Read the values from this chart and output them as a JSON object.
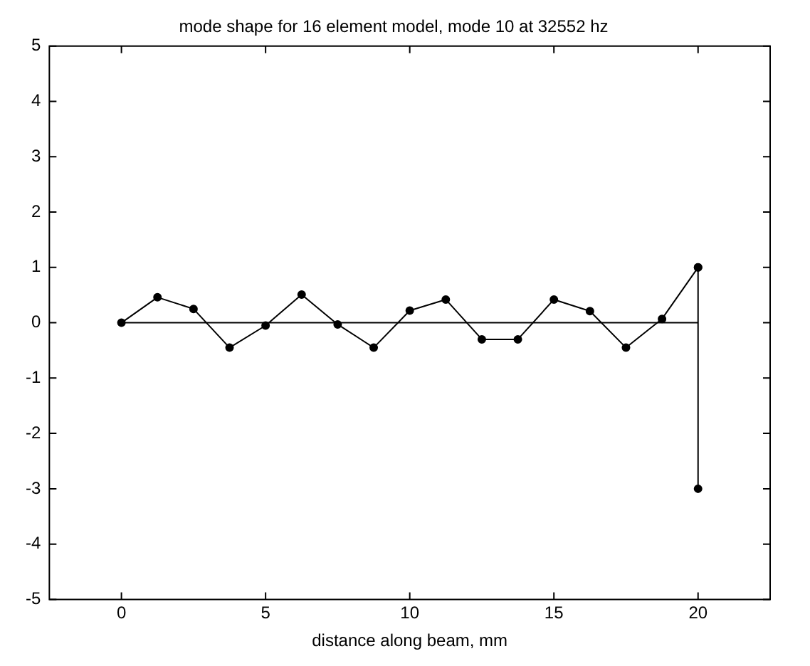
{
  "chart_data": {
    "type": "line",
    "title": "mode shape for 16 element model, mode 10 at 32552 hz",
    "xlabel": "distance along beam, mm",
    "xlim": [
      -2.5,
      22.5
    ],
    "xticks": [
      0,
      5,
      10,
      15,
      20
    ],
    "ylim": [
      -5,
      5
    ],
    "yticks": [
      -5,
      -4,
      -3,
      -2,
      -1,
      0,
      1,
      2,
      3,
      4,
      5
    ],
    "grid": false,
    "legend": false,
    "series": [
      {
        "color": "#000000",
        "marker": "circle",
        "x": [
          0,
          1.25,
          2.5,
          3.75,
          5,
          6.25,
          7.5,
          8.75,
          10,
          11.25,
          12.5,
          13.75,
          15,
          16.25,
          17.5,
          18.75,
          20
        ],
        "values": [
          0,
          0.46,
          0.25,
          -0.45,
          -0.05,
          0.51,
          -0.03,
          -0.45,
          0.22,
          0.42,
          -0.3,
          -0.3,
          0.42,
          0.21,
          -0.45,
          0.07,
          1
        ]
      },
      {
        "color": "#000000",
        "marker": "none",
        "x": [
          0,
          20
        ],
        "values": [
          0,
          0
        ]
      },
      {
        "color": "#000000",
        "marker": "circle",
        "x": [
          20,
          20
        ],
        "values": [
          1,
          -3
        ]
      }
    ]
  }
}
